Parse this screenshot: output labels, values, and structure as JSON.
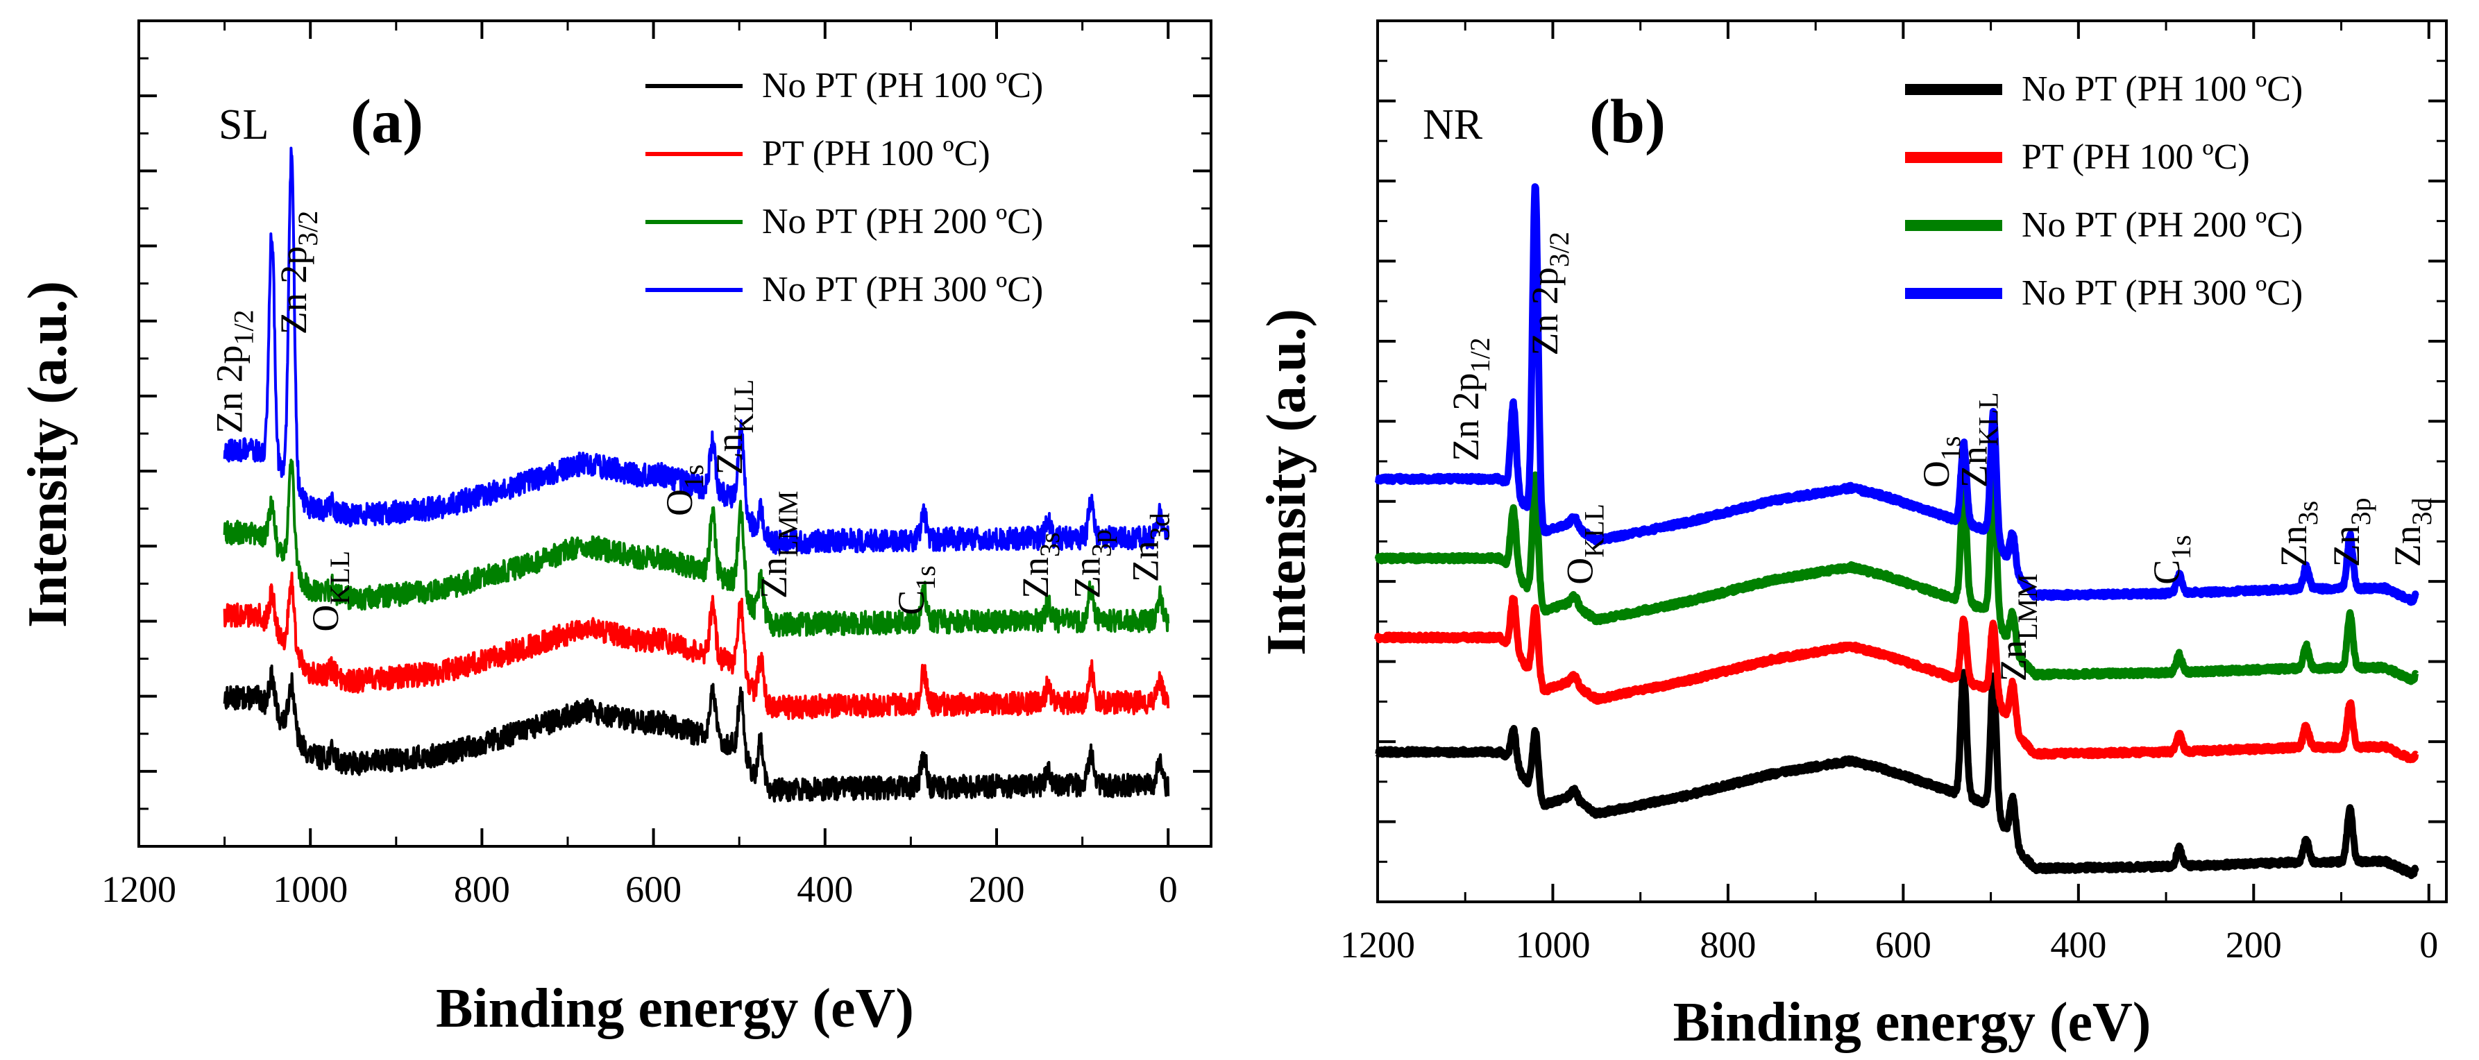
{
  "figure": {
    "panels": [
      {
        "panel_tag": "(a)",
        "sample_tag": "SL",
        "xlabel": "Binding energy (eV)",
        "ylabel": "Intensity (a.u.)"
      },
      {
        "panel_tag": "(b)",
        "sample_tag": "NR",
        "xlabel": "Binding energy (eV)",
        "ylabel": "Intensity (a.u.)"
      }
    ]
  },
  "chart_data": [
    {
      "type": "line",
      "panel": "(a)",
      "sample": "SL",
      "title": "",
      "xlabel": "Binding energy (eV)",
      "ylabel": "Intensity (a.u.)",
      "x_reversed": true,
      "xlim": [
        1200,
        -50
      ],
      "xticks": [
        1200,
        1000,
        800,
        600,
        400,
        200,
        0
      ],
      "xtick_labels": [
        "1200",
        "1000",
        "800",
        "600",
        "400",
        "200",
        "0"
      ],
      "ylim": [
        0,
        100
      ],
      "y_tick_labels_shown": false,
      "grid": false,
      "legend_position": "top-right",
      "series": [
        {
          "name": "No PT (PH 100 ºC)",
          "color": "#000000",
          "offset": 6,
          "line_width": 4,
          "noise": 1.4
        },
        {
          "name": "PT (PH 100 ºC)",
          "color": "#ff0000",
          "offset": 16,
          "line_width": 4,
          "noise": 1.4
        },
        {
          "name": "No PT (PH 200 ºC)",
          "color": "#008000",
          "offset": 26,
          "line_width": 4,
          "noise": 1.4
        },
        {
          "name": "No PT (PH 300 ºC)",
          "color": "#0000ff",
          "offset": 36,
          "line_width": 4,
          "noise": 1.4
        }
      ],
      "profile": [
        {
          "x": 1100,
          "y": 12
        },
        {
          "x": 1060,
          "y": 12
        },
        {
          "x": 1030,
          "y": 9
        },
        {
          "x": 1000,
          "y": 5
        },
        {
          "x": 950,
          "y": 4
        },
        {
          "x": 850,
          "y": 5
        },
        {
          "x": 750,
          "y": 8
        },
        {
          "x": 680,
          "y": 10.5
        },
        {
          "x": 620,
          "y": 9
        },
        {
          "x": 590,
          "y": 9
        },
        {
          "x": 560,
          "y": 8
        },
        {
          "x": 500,
          "y": 6
        },
        {
          "x": 480,
          "y": 2
        },
        {
          "x": 460,
          "y": 0.8
        },
        {
          "x": 400,
          "y": 1
        },
        {
          "x": 200,
          "y": 1.3
        },
        {
          "x": 50,
          "y": 1.4
        },
        {
          "x": 0,
          "y": 1.3
        }
      ],
      "peaks": [
        {
          "x": 1045,
          "heights": [
            4,
            4,
            5,
            28
          ]
        },
        {
          "x": 1022,
          "heights": [
            6,
            8,
            12,
            40
          ]
        },
        {
          "x": 975,
          "heights": [
            1,
            1,
            1,
            1
          ]
        },
        {
          "x": 531,
          "heights": [
            6,
            6,
            7,
            6
          ]
        },
        {
          "x": 498,
          "heights": [
            7,
            8,
            9,
            9
          ]
        },
        {
          "x": 475,
          "heights": [
            5,
            5,
            5,
            3
          ]
        },
        {
          "x": 285,
          "heights": [
            4,
            4,
            4,
            3
          ]
        },
        {
          "x": 140,
          "heights": [
            2,
            2,
            2,
            2
          ]
        },
        {
          "x": 90,
          "heights": [
            4,
            4,
            4,
            4
          ]
        },
        {
          "x": 10,
          "heights": [
            3,
            3,
            3,
            3
          ]
        }
      ],
      "annotations": [
        {
          "base": "Zn 2p",
          "sub": "1/2",
          "x": 1080,
          "y": 50,
          "rotate": -90
        },
        {
          "base": "Zn 2p",
          "sub": "3/2",
          "x": 1005,
          "y": 62,
          "rotate": -90
        },
        {
          "base": "O",
          "sub": "KLL",
          "x": 968,
          "y": 26,
          "rotate": -90
        },
        {
          "base": "O",
          "sub": "1s",
          "x": 555,
          "y": 40,
          "rotate": -90
        },
        {
          "base": "Zn",
          "sub": "KLL",
          "x": 497,
          "y": 45,
          "rotate": -90
        },
        {
          "base": "Zn",
          "sub": "LMM",
          "x": 445,
          "y": 30,
          "rotate": -90
        },
        {
          "base": "C",
          "sub": "1s",
          "x": 285,
          "y": 28,
          "rotate": -90
        },
        {
          "base": "Zn",
          "sub": "3s",
          "x": 140,
          "y": 30,
          "rotate": -90
        },
        {
          "base": "Zn",
          "sub": "3p",
          "x": 80,
          "y": 30,
          "rotate": -90
        },
        {
          "base": "Zn",
          "sub": "3d",
          "x": 12,
          "y": 32,
          "rotate": -90
        }
      ]
    },
    {
      "type": "line",
      "panel": "(b)",
      "sample": "NR",
      "title": "",
      "xlabel": "Binding energy (eV)",
      "ylabel": "Intensity (a.u.)",
      "x_reversed": true,
      "xlim": [
        1200,
        -20
      ],
      "xticks": [
        1200,
        1000,
        800,
        600,
        400,
        200,
        0
      ],
      "xtick_labels": [
        "1200",
        "1000",
        "800",
        "600",
        "400",
        "200",
        "0"
      ],
      "ylim": [
        0,
        100
      ],
      "y_tick_labels_shown": false,
      "grid": false,
      "legend_position": "top-right",
      "series": [
        {
          "name": "No PT (PH 100 ºC)",
          "color": "#000000",
          "offset": 3,
          "line_width": 10,
          "noise": 0.3
        },
        {
          "name": "PT (PH 100 ºC)",
          "color": "#ff0000",
          "offset": 16,
          "line_width": 10,
          "noise": 0.3
        },
        {
          "name": "No PT (PH 200 ºC)",
          "color": "#008000",
          "offset": 25,
          "line_width": 10,
          "noise": 0.3
        },
        {
          "name": "No PT (PH 300 ºC)",
          "color": "#0000ff",
          "offset": 34,
          "line_width": 10,
          "noise": 0.3
        }
      ],
      "profile": [
        {
          "x": 1200,
          "y": 14
        },
        {
          "x": 1060,
          "y": 14
        },
        {
          "x": 1040,
          "y": 12
        },
        {
          "x": 1010,
          "y": 8
        },
        {
          "x": 980,
          "y": 9
        },
        {
          "x": 950,
          "y": 7
        },
        {
          "x": 850,
          "y": 9
        },
        {
          "x": 750,
          "y": 11.5
        },
        {
          "x": 660,
          "y": 13
        },
        {
          "x": 620,
          "y": 12
        },
        {
          "x": 590,
          "y": 11
        },
        {
          "x": 560,
          "y": 10
        },
        {
          "x": 500,
          "y": 8
        },
        {
          "x": 470,
          "y": 3
        },
        {
          "x": 450,
          "y": 0.8
        },
        {
          "x": 300,
          "y": 1
        },
        {
          "x": 150,
          "y": 1.5
        },
        {
          "x": 50,
          "y": 1.6
        },
        {
          "x": 15,
          "y": 0
        }
      ],
      "peaks": [
        {
          "x": 1045,
          "heights": [
            4,
            6,
            7,
            10
          ]
        },
        {
          "x": 1020,
          "heights": [
            7,
            8,
            14,
            38
          ]
        },
        {
          "x": 975,
          "heights": [
            1,
            1,
            1,
            1
          ]
        },
        {
          "x": 531,
          "heights": [
            14,
            7,
            13,
            9
          ]
        },
        {
          "x": 497,
          "heights": [
            15,
            8,
            17,
            14
          ]
        },
        {
          "x": 475,
          "heights": [
            5,
            5,
            4,
            4
          ]
        },
        {
          "x": 285,
          "heights": [
            2,
            2,
            2,
            2
          ]
        },
        {
          "x": 140,
          "heights": [
            2.5,
            2.5,
            2.5,
            2.5
          ]
        },
        {
          "x": 90,
          "heights": [
            6,
            5,
            6,
            6
          ]
        },
        {
          "x": 10,
          "heights": [
            3.5,
            3,
            3,
            3.5
          ]
        }
      ],
      "annotations": [
        {
          "base": "Zn 2p",
          "sub": "1/2",
          "x": 1085,
          "y": 50,
          "rotate": -90
        },
        {
          "base": "Zn 2p",
          "sub": "3/2",
          "x": 995,
          "y": 62,
          "rotate": -90
        },
        {
          "base": "O",
          "sub": "KLL",
          "x": 955,
          "y": 36,
          "rotate": -90
        },
        {
          "base": "O",
          "sub": "1s",
          "x": 548,
          "y": 47,
          "rotate": -90
        },
        {
          "base": "Zn",
          "sub": "KLL",
          "x": 505,
          "y": 47,
          "rotate": -90
        },
        {
          "base": "Zn",
          "sub": "LMM",
          "x": 460,
          "y": 25,
          "rotate": -90
        },
        {
          "base": "C",
          "sub": "1s",
          "x": 285,
          "y": 36,
          "rotate": -90
        },
        {
          "base": "Zn",
          "sub": "3s",
          "x": 140,
          "y": 38,
          "rotate": -90
        },
        {
          "base": "Zn",
          "sub": "3p",
          "x": 80,
          "y": 38,
          "rotate": -90
        },
        {
          "base": "Zn",
          "sub": "3d",
          "x": 10,
          "y": 38,
          "rotate": -90
        }
      ]
    }
  ]
}
